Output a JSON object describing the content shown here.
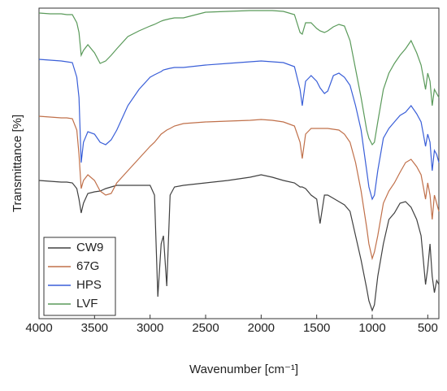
{
  "chart_data": {
    "type": "line",
    "xlabel": "Wavenumber [cm⁻¹]",
    "ylabel": "Transmittance [%]",
    "x": [
      4000,
      3900,
      3800,
      3750,
      3700,
      3660,
      3640,
      3620,
      3600,
      3560,
      3500,
      3450,
      3400,
      3350,
      3300,
      3200,
      3100,
      3000,
      2960,
      2930,
      2900,
      2880,
      2850,
      2820,
      2780,
      2700,
      2500,
      2300,
      2100,
      2000,
      1900,
      1800,
      1700,
      1650,
      1630,
      1600,
      1550,
      1500,
      1470,
      1430,
      1400,
      1350,
      1300,
      1250,
      1200,
      1150,
      1100,
      1050,
      1030,
      1000,
      980,
      950,
      900,
      850,
      800,
      750,
      700,
      650,
      600,
      560,
      540,
      520,
      500,
      480,
      460,
      440,
      420,
      400
    ],
    "xlim": [
      4000,
      400
    ],
    "xticks": [
      4000,
      3500,
      3000,
      2500,
      2000,
      1500,
      1000,
      500
    ],
    "ylim": [
      0,
      382
    ],
    "legend": "lower left",
    "series": [
      {
        "name": "CW9",
        "color": "#404040",
        "values": [
          170,
          169,
          168,
          168,
          167,
          160,
          147,
          130,
          142,
          154,
          156,
          157,
          160,
          162,
          164,
          164,
          164,
          164,
          152,
          27,
          92,
          102,
          40,
          152,
          162,
          164,
          167,
          170,
          174,
          177,
          174,
          170,
          167,
          162,
          162,
          160,
          152,
          147,
          117,
          152,
          152,
          148,
          144,
          140,
          132,
          102,
          72,
          37,
          22,
          10,
          17,
          52,
          92,
          122,
          130,
          142,
          144,
          137,
          122,
          102,
          72,
          42,
          62,
          92,
          52,
          32,
          47,
          42
        ]
      },
      {
        "name": "67G",
        "color": "#c0704a",
        "values": [
          249,
          248,
          247,
          247,
          246,
          232,
          202,
          160,
          170,
          177,
          170,
          157,
          152,
          154,
          167,
          182,
          197,
          212,
          217,
          222,
          227,
          229,
          232,
          234,
          237,
          240,
          242,
          243,
          244,
          245,
          244,
          242,
          237,
          217,
          197,
          227,
          234,
          234,
          234,
          234,
          234,
          233,
          232,
          227,
          217,
          192,
          157,
          112,
          92,
          74,
          82,
          102,
          142,
          157,
          167,
          180,
          192,
          196,
          187,
          177,
          162,
          147,
          167,
          152,
          122,
          152,
          142,
          132
        ]
      },
      {
        "name": "HPS",
        "color": "#3a5fd8",
        "values": [
          319,
          318,
          317,
          316,
          315,
          297,
          272,
          192,
          217,
          230,
          227,
          217,
          214,
          220,
          232,
          262,
          282,
          297,
          300,
          302,
          304,
          306,
          307,
          308,
          309,
          309,
          312,
          314,
          316,
          317,
          316,
          315,
          310,
          282,
          262,
          292,
          299,
          292,
          284,
          277,
          280,
          299,
          302,
          297,
          287,
          262,
          232,
          182,
          162,
          147,
          152,
          182,
          222,
          234,
          242,
          250,
          254,
          262,
          252,
          242,
          227,
          212,
          227,
          217,
          182,
          207,
          202,
          192
        ]
      },
      {
        "name": "LVF",
        "color": "#5a9a5a",
        "values": [
          376,
          375,
          375,
          374,
          374,
          364,
          352,
          324,
          330,
          337,
          327,
          314,
          317,
          324,
          332,
          347,
          354,
          360,
          362,
          364,
          366,
          367,
          368,
          369,
          370,
          370,
          377,
          378,
          379,
          379,
          379,
          378,
          374,
          352,
          350,
          364,
          364,
          357,
          354,
          352,
          354,
          359,
          362,
          360,
          342,
          307,
          272,
          232,
          222,
          214,
          217,
          242,
          282,
          302,
          314,
          324,
          332,
          342,
          327,
          312,
          297,
          282,
          302,
          292,
          262,
          282,
          277,
          272
        ]
      }
    ]
  }
}
